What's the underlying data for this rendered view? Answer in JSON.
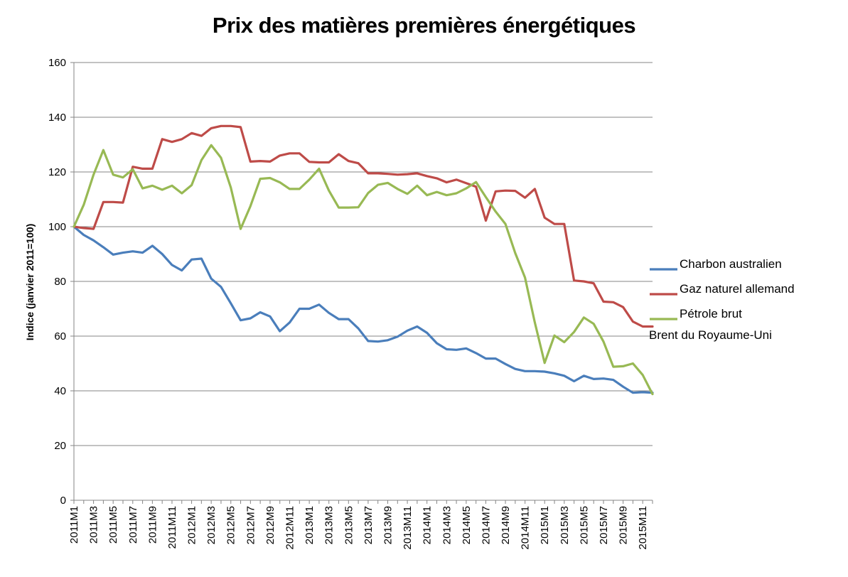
{
  "chart_data": {
    "type": "line",
    "title": "Prix des matières premières énergétiques",
    "xlabel": "",
    "ylabel": "Indice (janvier 2011=100)",
    "ylim": [
      0,
      160
    ],
    "yticks": [
      0,
      20,
      40,
      60,
      80,
      100,
      120,
      140,
      160
    ],
    "grid": true,
    "legend_position": "right",
    "categories": [
      "2011M1",
      "2011M2",
      "2011M3",
      "2011M4",
      "2011M5",
      "2011M6",
      "2011M7",
      "2011M8",
      "2011M9",
      "2011M10",
      "2011M11",
      "2011M12",
      "2012M1",
      "2012M2",
      "2012M3",
      "2012M4",
      "2012M5",
      "2012M6",
      "2012M7",
      "2012M8",
      "2012M9",
      "2012M10",
      "2012M11",
      "2012M12",
      "2013M1",
      "2013M2",
      "2013M3",
      "2013M4",
      "2013M5",
      "2013M6",
      "2013M7",
      "2013M8",
      "2013M9",
      "2013M10",
      "2013M11",
      "2013M12",
      "2014M1",
      "2014M2",
      "2014M3",
      "2014M4",
      "2014M5",
      "2014M6",
      "2014M7",
      "2014M8",
      "2014M9",
      "2014M10",
      "2014M11",
      "2014M12",
      "2015M1",
      "2015M2",
      "2015M3",
      "2015M4",
      "2015M5",
      "2015M6",
      "2015M7",
      "2015M8",
      "2015M9",
      "2015M10",
      "2015M11",
      "2015M12"
    ],
    "tick_labels": [
      "2011M1",
      "2011M3",
      "2011M5",
      "2011M7",
      "2011M9",
      "2011M11",
      "2012M1",
      "2012M3",
      "2012M5",
      "2012M7",
      "2012M9",
      "2012M11",
      "2013M1",
      "2013M3",
      "2013M5",
      "2013M7",
      "2013M9",
      "2013M11",
      "2014M1",
      "2014M3",
      "2014M5",
      "2014M7",
      "2014M9",
      "2014M11",
      "2015M1",
      "2015M3",
      "2015M5",
      "2015M7",
      "2015M9",
      "2015M11"
    ],
    "series": [
      {
        "name": "Charbon australien",
        "color": "#4a7ebb",
        "values": [
          100,
          97,
          95,
          92.5,
          89.8,
          90.5,
          91,
          90.5,
          93,
          90,
          86,
          84,
          88,
          88.3,
          81,
          78,
          72,
          65.8,
          66.5,
          68.7,
          67.2,
          61.8,
          65,
          70,
          70,
          71.5,
          68.5,
          66.2,
          66.2,
          62.8,
          58.2,
          58,
          58.5,
          59.8,
          62,
          63.5,
          61.2,
          57.4,
          55.2,
          55,
          55.5,
          53.8,
          51.8,
          51.8,
          49.8,
          48,
          47.2,
          47.2,
          47,
          46.4,
          45.5,
          43.5,
          45.5,
          44.3,
          44.5,
          44,
          41.5,
          39.3,
          39.5,
          39.3
        ]
      },
      {
        "name": "Gaz naturel allemand",
        "color": "#be4b48",
        "values": [
          100,
          99.5,
          99.2,
          109,
          109,
          108.8,
          121.9,
          121.2,
          121.2,
          132,
          131,
          132,
          134.2,
          133.2,
          136,
          136.8,
          136.8,
          136.4,
          123.8,
          124,
          123.8,
          126,
          126.8,
          126.8,
          123.7,
          123.5,
          123.5,
          126.5,
          124,
          123.2,
          119.5,
          119.5,
          119.3,
          119,
          119.2,
          119.5,
          118.5,
          117.7,
          116.2,
          117.2,
          115.9,
          114.6,
          102.2,
          112.9,
          113.2,
          113.1,
          110.6,
          113.8,
          103.3,
          101,
          101,
          80.3,
          80,
          79.3,
          72.6,
          72.4,
          70.6,
          65.3,
          63.5,
          63.5
        ]
      },
      {
        "name": "Pétrole brut Brent du Royaume-Uni",
        "legend_line1": "Pétrole brut",
        "legend_line2": "Brent du Royaume-Uni",
        "color": "#98b954",
        "values": [
          100,
          108,
          119,
          128,
          119,
          118,
          121,
          114,
          115,
          113.5,
          115,
          112.2,
          115.2,
          124.3,
          129.8,
          125.2,
          114.3,
          99.2,
          107.5,
          117.5,
          117.8,
          116.2,
          113.8,
          113.8,
          117.2,
          121.2,
          113.2,
          107,
          107,
          107.1,
          112.3,
          115.3,
          116,
          113.8,
          112,
          115,
          111.5,
          112.7,
          111.5,
          112.2,
          114,
          116.3,
          110.8,
          105.5,
          101,
          90.4,
          81.4,
          65,
          50.2,
          60.2,
          57.8,
          61.5,
          66.8,
          64.5,
          58,
          48.8,
          49,
          50,
          45.8,
          38.8
        ]
      }
    ]
  }
}
